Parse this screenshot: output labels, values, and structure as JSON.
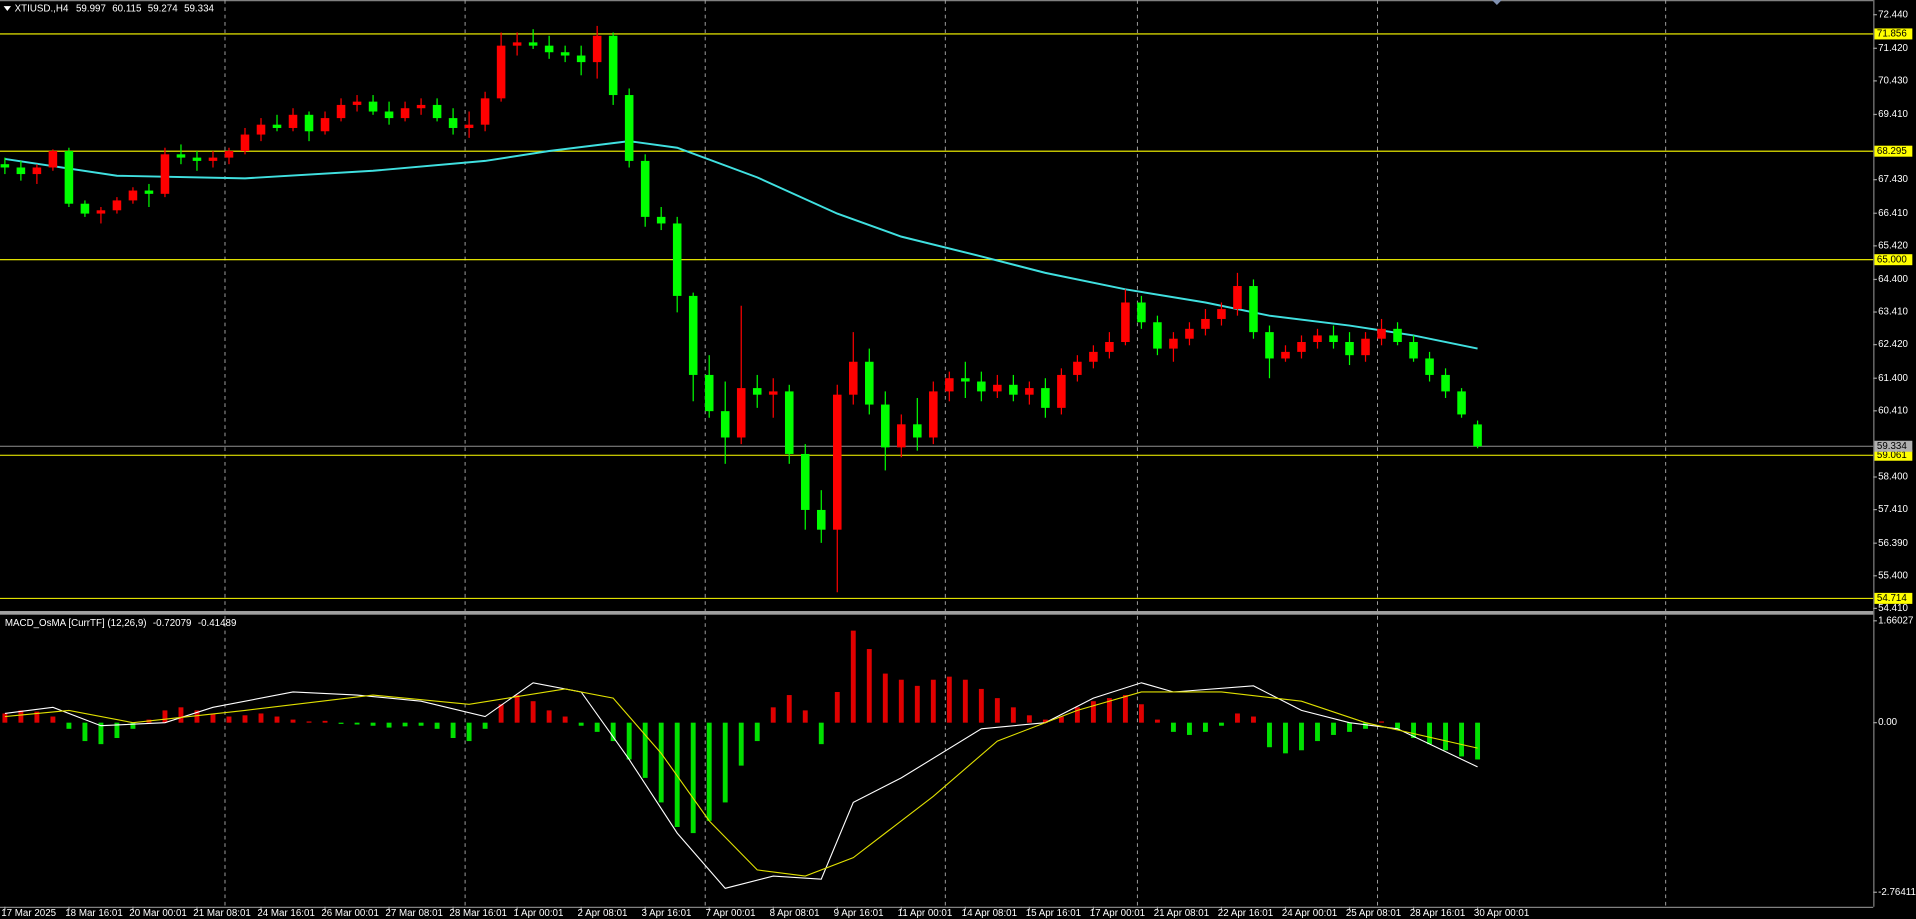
{
  "chart_data": [
    {
      "type": "candlestick",
      "symbol": "XTIUSD.,H4",
      "up_color": "#ff0000",
      "down_color": "#00ff00",
      "categories": [
        "17 Mar 2025",
        null,
        null,
        null,
        "18 Mar 16:01",
        null,
        null,
        null,
        "20 Mar 00:01",
        null,
        null,
        null,
        "21 Mar 08:01",
        null,
        null,
        null,
        "24 Mar 16:01",
        null,
        null,
        null,
        "26 Mar 00:01",
        null,
        null,
        null,
        "27 Mar 08:01",
        null,
        null,
        null,
        "28 Mar 16:01",
        null,
        null,
        null,
        "1 Apr 00:01",
        null,
        null,
        null,
        "2 Apr 08:01",
        null,
        null,
        null,
        "3 Apr 16:01",
        null,
        null,
        null,
        "7 Apr 00:01",
        null,
        null,
        null,
        "8 Apr 08:01",
        null,
        null,
        null,
        "9 Apr 16:01",
        null,
        null,
        null,
        "11 Apr 00:01",
        null,
        null,
        null,
        "14 Apr 08:01",
        null,
        null,
        null,
        "15 Apr 16:01",
        null,
        null,
        null,
        "17 Apr 00:01",
        null,
        null,
        null,
        "21 Apr 08:01",
        null,
        null,
        null,
        "22 Apr 16:01",
        null,
        null,
        null,
        "24 Apr 00:01",
        null,
        null,
        null,
        "25 Apr 08:01",
        null,
        null,
        null,
        "28 Apr 16:01",
        null,
        null,
        null,
        "30 Apr 00:01"
      ],
      "open": [
        67.9,
        67.8,
        67.6,
        67.8,
        68.3,
        66.7,
        66.4,
        66.5,
        66.8,
        67.1,
        67.0,
        68.2,
        68.1,
        68.0,
        68.1,
        68.3,
        68.8,
        69.1,
        69.0,
        69.4,
        68.9,
        69.3,
        69.7,
        69.8,
        69.5,
        69.3,
        69.6,
        69.7,
        69.3,
        69.0,
        69.1,
        69.9,
        71.5,
        71.6,
        71.5,
        71.3,
        71.2,
        71.0,
        71.8,
        70.0,
        68.0,
        66.3,
        66.1,
        63.9,
        61.5,
        60.4,
        59.6,
        61.1,
        60.9,
        61.0,
        59.1,
        57.4,
        56.8,
        60.9,
        61.9,
        60.6,
        59.3,
        60.0,
        59.6,
        61.0,
        61.4,
        61.3,
        61.0,
        61.2,
        60.9,
        61.1,
        60.5,
        61.5,
        61.9,
        62.2,
        62.5,
        63.7,
        63.1,
        62.3,
        62.6,
        62.9,
        63.2,
        63.5,
        64.2,
        62.8,
        62.0,
        62.2,
        62.5,
        62.7,
        62.5,
        62.1,
        62.6,
        62.9,
        62.5,
        62.0,
        61.5,
        61.0,
        59.997
      ],
      "high": [
        68.1,
        68.0,
        67.9,
        68.35,
        68.4,
        66.8,
        66.6,
        66.9,
        67.2,
        67.3,
        68.4,
        68.5,
        68.3,
        68.3,
        68.4,
        69.0,
        69.3,
        69.4,
        69.6,
        69.5,
        69.5,
        69.9,
        70.0,
        70.0,
        69.8,
        69.8,
        69.9,
        69.9,
        69.6,
        69.5,
        70.1,
        71.9,
        71.9,
        72.0,
        71.8,
        71.5,
        71.5,
        72.1,
        71.9,
        70.2,
        68.2,
        66.6,
        66.3,
        64.0,
        62.1,
        61.3,
        63.6,
        61.5,
        61.4,
        61.2,
        59.4,
        58.0,
        61.2,
        62.8,
        62.3,
        61.0,
        60.3,
        60.8,
        61.3,
        61.6,
        61.9,
        61.6,
        61.5,
        61.5,
        61.3,
        61.4,
        61.7,
        62.1,
        62.4,
        62.8,
        64.1,
        63.9,
        63.3,
        62.8,
        63.1,
        63.5,
        63.7,
        64.6,
        64.4,
        63.0,
        62.4,
        62.7,
        62.9,
        63.0,
        62.8,
        62.8,
        63.2,
        63.1,
        62.7,
        62.2,
        61.7,
        61.1,
        60.115
      ],
      "low": [
        67.6,
        67.4,
        67.3,
        67.7,
        66.6,
        66.3,
        66.1,
        66.4,
        66.7,
        66.6,
        66.9,
        67.9,
        67.7,
        67.8,
        67.9,
        68.2,
        68.6,
        68.9,
        68.9,
        68.6,
        68.8,
        69.2,
        69.5,
        69.4,
        69.1,
        69.2,
        69.4,
        69.2,
        68.8,
        68.7,
        68.9,
        69.8,
        71.2,
        71.4,
        71.1,
        71.0,
        70.6,
        70.5,
        69.7,
        67.8,
        66.0,
        65.9,
        63.4,
        60.7,
        60.2,
        58.8,
        59.4,
        60.5,
        60.2,
        58.8,
        56.8,
        56.4,
        54.9,
        60.6,
        60.3,
        58.6,
        59.0,
        59.2,
        59.4,
        60.7,
        60.8,
        60.7,
        60.8,
        60.7,
        60.6,
        60.2,
        60.3,
        61.3,
        61.7,
        62.0,
        62.4,
        62.9,
        62.1,
        61.9,
        62.4,
        62.7,
        63.0,
        63.3,
        62.6,
        61.4,
        61.9,
        62.0,
        62.3,
        62.3,
        61.8,
        61.9,
        62.4,
        62.4,
        61.9,
        61.3,
        60.8,
        60.2,
        59.274
      ],
      "close": [
        67.8,
        67.6,
        67.8,
        68.3,
        66.7,
        66.4,
        66.5,
        66.8,
        67.1,
        67.0,
        68.2,
        68.1,
        68.0,
        68.1,
        68.3,
        68.8,
        69.1,
        69.0,
        69.4,
        68.9,
        69.3,
        69.7,
        69.8,
        69.5,
        69.3,
        69.6,
        69.7,
        69.3,
        69.0,
        69.1,
        69.9,
        71.5,
        71.6,
        71.5,
        71.3,
        71.2,
        71.0,
        71.8,
        70.0,
        68.0,
        66.3,
        66.1,
        63.9,
        61.5,
        60.4,
        59.6,
        61.1,
        60.9,
        61.0,
        59.1,
        57.4,
        56.8,
        60.9,
        61.9,
        60.6,
        59.3,
        60.0,
        59.6,
        61.0,
        61.4,
        61.3,
        61.0,
        61.2,
        60.9,
        61.1,
        60.5,
        61.5,
        61.9,
        62.2,
        62.5,
        63.7,
        63.1,
        62.3,
        62.6,
        62.9,
        63.2,
        63.5,
        64.2,
        62.8,
        62.0,
        62.2,
        62.5,
        62.7,
        62.5,
        62.1,
        62.6,
        62.9,
        62.5,
        62.0,
        61.5,
        61.0,
        60.3,
        59.334
      ],
      "ma": {
        "color": "#40e0e0",
        "x": [
          0,
          7,
          15,
          23,
          30,
          34,
          39,
          42,
          47,
          52,
          56,
          61,
          65,
          70,
          75,
          79,
          84,
          88,
          92
        ],
        "values": [
          68.06,
          67.55,
          67.47,
          67.7,
          68.0,
          68.3,
          68.6,
          68.4,
          67.5,
          66.4,
          65.7,
          65.1,
          64.6,
          64.1,
          63.7,
          63.3,
          63.0,
          62.7,
          62.3
        ]
      },
      "levels": [
        71.856,
        68.295,
        {
          "value": 65,
          "label": "65.000"
        },
        59.061,
        54.714
      ],
      "level_color": "#ffff00",
      "xgrid": [
        13.75,
        28.75,
        43.75,
        58.75,
        70.75,
        85.75,
        103.75
      ],
      "ylim": [
        54.33,
        72.885
      ],
      "yticks": [
        {
          "value": 72.44,
          "label": "72.440"
        },
        {
          "value": 71.42,
          "label": "71.420"
        },
        {
          "value": 70.43,
          "label": "70.430"
        },
        {
          "value": 69.41,
          "label": "69.410"
        },
        {
          "value": 67.43,
          "label": "67.430"
        },
        {
          "value": 66.41,
          "label": "66.410"
        },
        {
          "value": 65.42,
          "label": "65.420"
        },
        {
          "value": 64.4,
          "label": "64.400"
        },
        {
          "value": 63.41,
          "label": "63.410"
        },
        {
          "value": 62.42,
          "label": "62.420"
        },
        {
          "value": 61.4,
          "label": "61.400"
        },
        {
          "value": 60.41,
          "label": "60.410"
        },
        {
          "value": 58.4,
          "label": "58.400"
        },
        {
          "value": 57.41,
          "label": "57.410"
        },
        {
          "value": 56.39,
          "label": "56.390"
        },
        {
          "value": 55.4,
          "label": "55.400"
        },
        {
          "value": 54.41,
          "label": "54.410"
        }
      ]
    },
    {
      "type": "macd",
      "title": "MACD_OsMA [CurrTF] (12,26,9)",
      "pos_color": "#e00000",
      "neg_color": "#00e000",
      "values": [
        0.15,
        0.2,
        0.18,
        0.1,
        -0.1,
        -0.3,
        -0.35,
        -0.25,
        -0.1,
        0.05,
        0.2,
        0.25,
        0.2,
        0.15,
        0.1,
        0.12,
        0.15,
        0.1,
        0.05,
        0.02,
        0.03,
        -0.02,
        -0.03,
        -0.05,
        -0.08,
        -0.06,
        -0.05,
        -0.1,
        -0.25,
        -0.3,
        -0.1,
        0.3,
        0.45,
        0.35,
        0.2,
        0.1,
        -0.05,
        -0.15,
        -0.3,
        -0.6,
        -0.9,
        -1.3,
        -1.7,
        -1.8,
        -1.6,
        -1.3,
        -0.7,
        -0.3,
        0.25,
        0.45,
        0.2,
        -0.35,
        0.5,
        1.5,
        1.2,
        0.8,
        0.7,
        0.6,
        0.7,
        0.75,
        0.7,
        0.55,
        0.4,
        0.25,
        0.12,
        0.05,
        0.1,
        0.25,
        0.35,
        0.4,
        0.45,
        0.3,
        0.05,
        -0.15,
        -0.2,
        -0.15,
        -0.05,
        0.15,
        0.1,
        -0.4,
        -0.5,
        -0.45,
        -0.3,
        -0.2,
        -0.15,
        -0.1,
        0.02,
        -0.1,
        -0.25,
        -0.35,
        -0.45,
        -0.55,
        -0.6
      ],
      "lines": [
        {
          "color": "#ffffff",
          "x": [
            0,
            3,
            6,
            10,
            13,
            18,
            22,
            26,
            30,
            33,
            36,
            39,
            42,
            45,
            48,
            51,
            53,
            56,
            61,
            65,
            68,
            71,
            73,
            78,
            81,
            84,
            87,
            92
          ],
          "values": [
            0.15,
            0.25,
            -0.05,
            0,
            0.25,
            0.5,
            0.45,
            0.35,
            0.1,
            0.65,
            0.5,
            -0.6,
            -1.8,
            -2.7,
            -2.5,
            -2.55,
            -1.3,
            -0.9,
            -0.1,
            0,
            0.4,
            0.65,
            0.5,
            0.6,
            0.2,
            0,
            -0.1,
            -0.72079
          ]
        },
        {
          "color": "#e0e000",
          "x": [
            0,
            4,
            8,
            15,
            23,
            29,
            35,
            38,
            41,
            44,
            47,
            50,
            53,
            58,
            62,
            67,
            71,
            76,
            81,
            85,
            92
          ],
          "values": [
            0.1,
            0.2,
            0,
            0.2,
            0.45,
            0.3,
            0.55,
            0.4,
            -0.5,
            -1.6,
            -2.4,
            -2.5,
            -2.2,
            -1.2,
            -0.3,
            0.2,
            0.5,
            0.5,
            0.35,
            0,
            -0.41489
          ]
        }
      ],
      "ylim": [
        -3.0,
        1.76
      ],
      "yticks": [
        1.66027,
        {
          "value": 0,
          "label": "0.00"
        },
        -2.76411
      ]
    }
  ]
}
